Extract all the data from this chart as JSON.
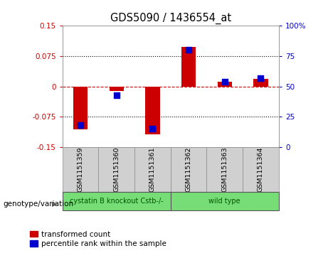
{
  "title": "GDS5090 / 1436554_at",
  "samples": [
    "GSM1151359",
    "GSM1151360",
    "GSM1151361",
    "GSM1151362",
    "GSM1151363",
    "GSM1151364"
  ],
  "transformed_counts": [
    -0.107,
    -0.012,
    -0.118,
    0.097,
    0.012,
    0.018
  ],
  "percentile_ranks": [
    18,
    43,
    15,
    80,
    54,
    57
  ],
  "bar_color": "#CC0000",
  "dot_color": "#0000CC",
  "left_ylim": [
    -0.15,
    0.15
  ],
  "right_ylim": [
    0,
    100
  ],
  "left_yticks": [
    -0.15,
    -0.075,
    0,
    0.075,
    0.15
  ],
  "right_yticks": [
    0,
    25,
    50,
    75,
    100
  ],
  "left_yticklabels": [
    "-0.15",
    "-0.075",
    "0",
    "0.075",
    "0.15"
  ],
  "right_yticklabels": [
    "0",
    "25",
    "50",
    "75",
    "100%"
  ],
  "genotype_label": "genotype/variation",
  "legend_items": [
    "transformed count",
    "percentile rank within the sample"
  ],
  "background_color": "#ffffff",
  "plot_bg_color": "#ffffff",
  "zero_line_color": "#CC0000",
  "bar_width": 0.4,
  "dot_size": 28,
  "group_defs": [
    {
      "start": 0,
      "end": 2,
      "label": "cystatin B knockout Cstb-/-",
      "color": "#77dd77",
      "text_color": "#005500"
    },
    {
      "start": 3,
      "end": 5,
      "label": "wild type",
      "color": "#77dd77",
      "text_color": "#005500"
    }
  ],
  "sample_box_color": "#d0d0d0",
  "sample_box_edge_color": "#888888"
}
